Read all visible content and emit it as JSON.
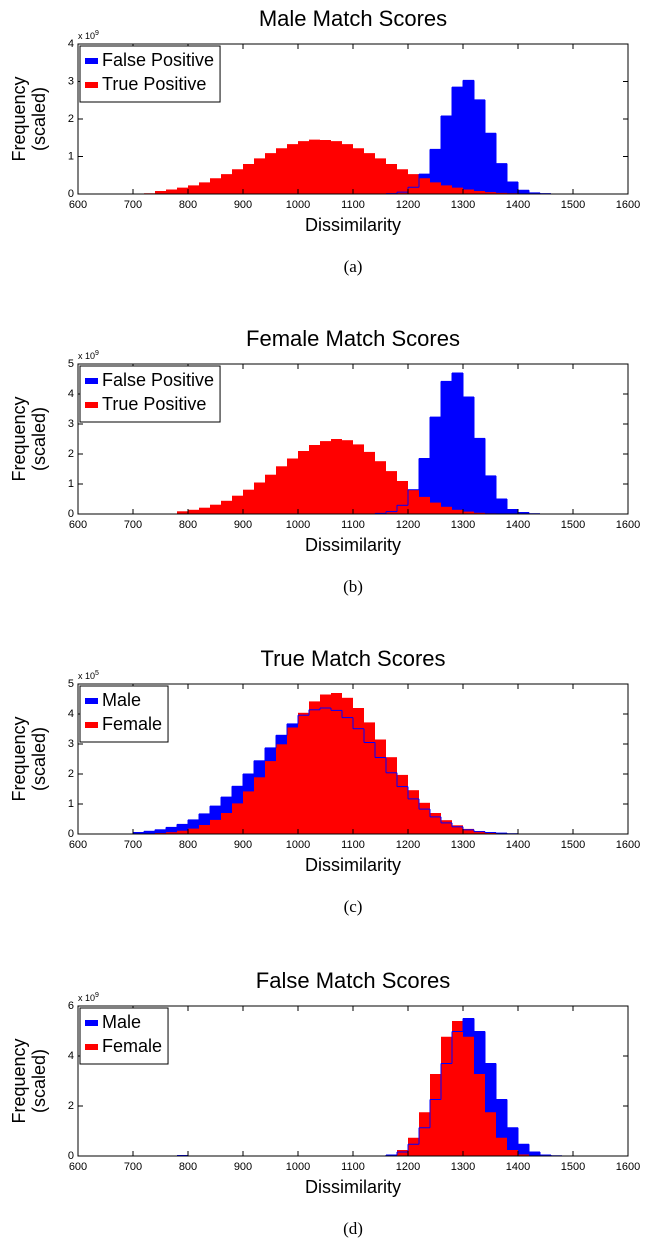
{
  "chart_data": [
    {
      "type": "histogram",
      "title": "Male Match Scores",
      "x_label": "Dissimilarity",
      "y_label": [
        "Frequency",
        "(scaled)"
      ],
      "y_multiplier": "x 10",
      "y_multiplier_exponent": "9",
      "caption": "(a)",
      "bins": [
        600,
        620,
        640,
        660,
        680,
        700,
        720,
        740,
        760,
        780,
        800,
        820,
        840,
        860,
        880,
        900,
        920,
        940,
        960,
        980,
        1000,
        1020,
        1040,
        1060,
        1080,
        1100,
        1120,
        1140,
        1160,
        1180,
        1200,
        1220,
        1240,
        1260,
        1280,
        1300,
        1320,
        1340,
        1360,
        1380,
        1400,
        1420,
        1440,
        1460,
        1480,
        1500,
        1520,
        1540,
        1560,
        1580,
        1600
      ],
      "series": [
        {
          "name": "False Positive",
          "color": "#0000ff",
          "values": [
            0,
            0,
            0,
            0,
            0,
            0,
            0,
            0,
            0,
            0,
            0,
            0,
            0,
            0,
            0,
            0,
            0,
            0,
            0,
            0,
            0,
            0,
            0,
            0,
            0,
            0,
            0,
            0,
            0.01,
            0.05,
            0.18,
            0.53,
            1.19,
            2.08,
            2.85,
            3.03,
            2.51,
            1.62,
            0.81,
            0.32,
            0.1,
            0.03,
            0.01,
            0,
            0,
            0,
            0,
            0,
            0,
            0
          ]
        },
        {
          "name": "True Positive",
          "color": "#ff0000",
          "values": [
            0,
            0,
            0,
            0,
            0,
            0.01,
            0.02,
            0.08,
            0.12,
            0.17,
            0.23,
            0.31,
            0.42,
            0.53,
            0.66,
            0.8,
            0.95,
            1.09,
            1.22,
            1.33,
            1.41,
            1.45,
            1.44,
            1.41,
            1.33,
            1.22,
            1.09,
            0.95,
            0.8,
            0.66,
            0.53,
            0.42,
            0.31,
            0.23,
            0.17,
            0.12,
            0.08,
            0.05,
            0.03,
            0.02,
            0.01,
            0,
            0,
            0,
            0,
            0,
            0,
            0,
            0,
            0
          ]
        }
      ],
      "xlim": [
        600,
        1600
      ],
      "xticks": [
        600,
        700,
        800,
        900,
        1000,
        1100,
        1200,
        1300,
        1400,
        1500,
        1600
      ],
      "ylim": [
        0,
        4
      ],
      "yticks": [
        0,
        1,
        2,
        3,
        4
      ],
      "legend": "upper left"
    },
    {
      "type": "histogram",
      "title": "Female Match Scores",
      "x_label": "Dissimilarity",
      "y_label": [
        "Frequency",
        "(scaled)"
      ],
      "y_multiplier": "x 10",
      "y_multiplier_exponent": "9",
      "caption": "(b)",
      "bins": [
        600,
        620,
        640,
        660,
        680,
        700,
        720,
        740,
        760,
        780,
        800,
        820,
        840,
        860,
        880,
        900,
        920,
        940,
        960,
        980,
        1000,
        1020,
        1040,
        1060,
        1080,
        1100,
        1120,
        1140,
        1160,
        1180,
        1200,
        1220,
        1240,
        1260,
        1280,
        1300,
        1320,
        1340,
        1360,
        1380,
        1400,
        1420,
        1440,
        1460,
        1480,
        1500,
        1520,
        1540,
        1560,
        1580,
        1600
      ],
      "series": [
        {
          "name": "False Positive",
          "color": "#0000ff",
          "values": [
            0,
            0,
            0,
            0,
            0,
            0,
            0,
            0,
            0,
            0,
            0,
            0,
            0,
            0,
            0,
            0,
            0,
            0,
            0,
            0,
            0,
            0,
            0,
            0,
            0,
            0,
            0,
            0.02,
            0.08,
            0.29,
            0.81,
            1.85,
            3.23,
            4.42,
            4.7,
            3.9,
            2.52,
            1.27,
            0.5,
            0.15,
            0.05,
            0.01,
            0,
            0,
            0,
            0,
            0,
            0,
            0,
            0
          ]
        },
        {
          "name": "True Positive",
          "color": "#ff0000",
          "values": [
            0,
            0,
            0,
            0,
            0,
            0,
            0,
            0,
            0,
            0.09,
            0.14,
            0.21,
            0.31,
            0.44,
            0.61,
            0.81,
            1.05,
            1.31,
            1.59,
            1.85,
            2.1,
            2.3,
            2.43,
            2.5,
            2.46,
            2.32,
            2.07,
            1.76,
            1.43,
            1.1,
            0.81,
            0.57,
            0.38,
            0.24,
            0.14,
            0.08,
            0.04,
            0.02,
            0.01,
            0,
            0,
            0,
            0,
            0,
            0,
            0,
            0,
            0,
            0,
            0
          ]
        }
      ],
      "xlim": [
        600,
        1600
      ],
      "xticks": [
        600,
        700,
        800,
        900,
        1000,
        1100,
        1200,
        1300,
        1400,
        1500,
        1600
      ],
      "ylim": [
        0,
        5
      ],
      "yticks": [
        0,
        1,
        2,
        3,
        4,
        5
      ],
      "legend": "upper left"
    },
    {
      "type": "histogram",
      "title": "True Match Scores",
      "x_label": "Dissimilarity",
      "y_label": [
        "Frequency",
        "(scaled)"
      ],
      "y_multiplier": "x 10",
      "y_multiplier_exponent": "5",
      "caption": "(c)",
      "bins": [
        600,
        620,
        640,
        660,
        680,
        700,
        720,
        740,
        760,
        780,
        800,
        820,
        840,
        860,
        880,
        900,
        920,
        940,
        960,
        980,
        1000,
        1020,
        1040,
        1060,
        1080,
        1100,
        1120,
        1140,
        1160,
        1180,
        1200,
        1220,
        1240,
        1260,
        1280,
        1300,
        1320,
        1340,
        1360,
        1380,
        1400,
        1420,
        1440,
        1460,
        1480,
        1500,
        1520,
        1540,
        1560,
        1580,
        1600
      ],
      "series": [
        {
          "name": "Male",
          "color": "#0000ff",
          "values": [
            0,
            0,
            0,
            0,
            0,
            0.05,
            0.09,
            0.14,
            0.22,
            0.32,
            0.47,
            0.67,
            0.93,
            1.23,
            1.59,
            2.0,
            2.44,
            2.87,
            3.29,
            3.67,
            3.96,
            4.14,
            4.2,
            4.12,
            3.88,
            3.51,
            3.05,
            2.55,
            2.04,
            1.58,
            1.17,
            0.83,
            0.57,
            0.37,
            0.24,
            0.14,
            0.08,
            0.05,
            0.03,
            0.01,
            0,
            0,
            0,
            0,
            0,
            0,
            0,
            0,
            0,
            0
          ]
        },
        {
          "name": "Female",
          "color": "#ff0000",
          "values": [
            0,
            0,
            0,
            0,
            0,
            0,
            0.01,
            0.03,
            0.06,
            0.11,
            0.18,
            0.3,
            0.47,
            0.7,
            1.02,
            1.42,
            1.89,
            2.43,
            2.99,
            3.55,
            4.04,
            4.42,
            4.65,
            4.7,
            4.54,
            4.2,
            3.72,
            3.15,
            2.56,
            1.97,
            1.46,
            1.04,
            0.7,
            0.46,
            0.29,
            0.17,
            0.1,
            0.05,
            0.03,
            0.01,
            0,
            0,
            0,
            0,
            0,
            0,
            0,
            0,
            0,
            0
          ]
        }
      ],
      "xlim": [
        600,
        1600
      ],
      "xticks": [
        600,
        700,
        800,
        900,
        1000,
        1100,
        1200,
        1300,
        1400,
        1500,
        1600
      ],
      "ylim": [
        0,
        5
      ],
      "yticks": [
        0,
        1,
        2,
        3,
        4,
        5
      ],
      "legend": "upper left"
    },
    {
      "type": "histogram",
      "title": "False Match Scores",
      "x_label": "Dissimilarity",
      "y_label": [
        "Frequency",
        "(scaled)"
      ],
      "y_multiplier": "x 10",
      "y_multiplier_exponent": "9",
      "caption": "(d)",
      "bins": [
        600,
        620,
        640,
        660,
        680,
        700,
        720,
        740,
        760,
        780,
        800,
        820,
        840,
        860,
        880,
        900,
        920,
        940,
        960,
        980,
        1000,
        1020,
        1040,
        1060,
        1080,
        1100,
        1120,
        1140,
        1160,
        1180,
        1200,
        1220,
        1240,
        1260,
        1280,
        1300,
        1320,
        1340,
        1360,
        1380,
        1400,
        1420,
        1440,
        1460,
        1480,
        1500,
        1520,
        1540,
        1560,
        1580,
        1600
      ],
      "series": [
        {
          "name": "Male",
          "color": "#0000ff",
          "values": [
            0,
            0,
            0,
            0,
            0,
            0,
            0,
            0,
            0,
            0.02,
            0,
            0,
            0,
            0,
            0,
            0,
            0,
            0,
            0,
            0,
            0,
            0,
            0,
            0,
            0,
            0,
            0,
            0,
            0.04,
            0.16,
            0.47,
            1.13,
            2.26,
            3.7,
            4.98,
            5.5,
            4.98,
            3.7,
            2.26,
            1.13,
            0.47,
            0.16,
            0.04,
            0.01,
            0,
            0,
            0,
            0,
            0,
            0
          ]
        },
        {
          "name": "Female",
          "color": "#ff0000",
          "values": [
            0,
            0,
            0,
            0,
            0,
            0,
            0,
            0,
            0,
            0,
            0,
            0,
            0,
            0,
            0,
            0,
            0,
            0,
            0,
            0,
            0,
            0,
            0,
            0,
            0,
            0,
            0,
            0.01,
            0.06,
            0.24,
            0.73,
            1.75,
            3.28,
            4.77,
            5.4,
            4.77,
            3.28,
            1.75,
            0.73,
            0.24,
            0.06,
            0,
            0,
            0,
            0,
            0,
            0,
            0,
            0,
            0
          ]
        }
      ],
      "xlim": [
        600,
        1600
      ],
      "xticks": [
        600,
        700,
        800,
        900,
        1000,
        1100,
        1200,
        1300,
        1400,
        1500,
        1600
      ],
      "ylim": [
        0,
        6
      ],
      "yticks": [
        0,
        2,
        4,
        6
      ],
      "legend": "upper left"
    }
  ]
}
